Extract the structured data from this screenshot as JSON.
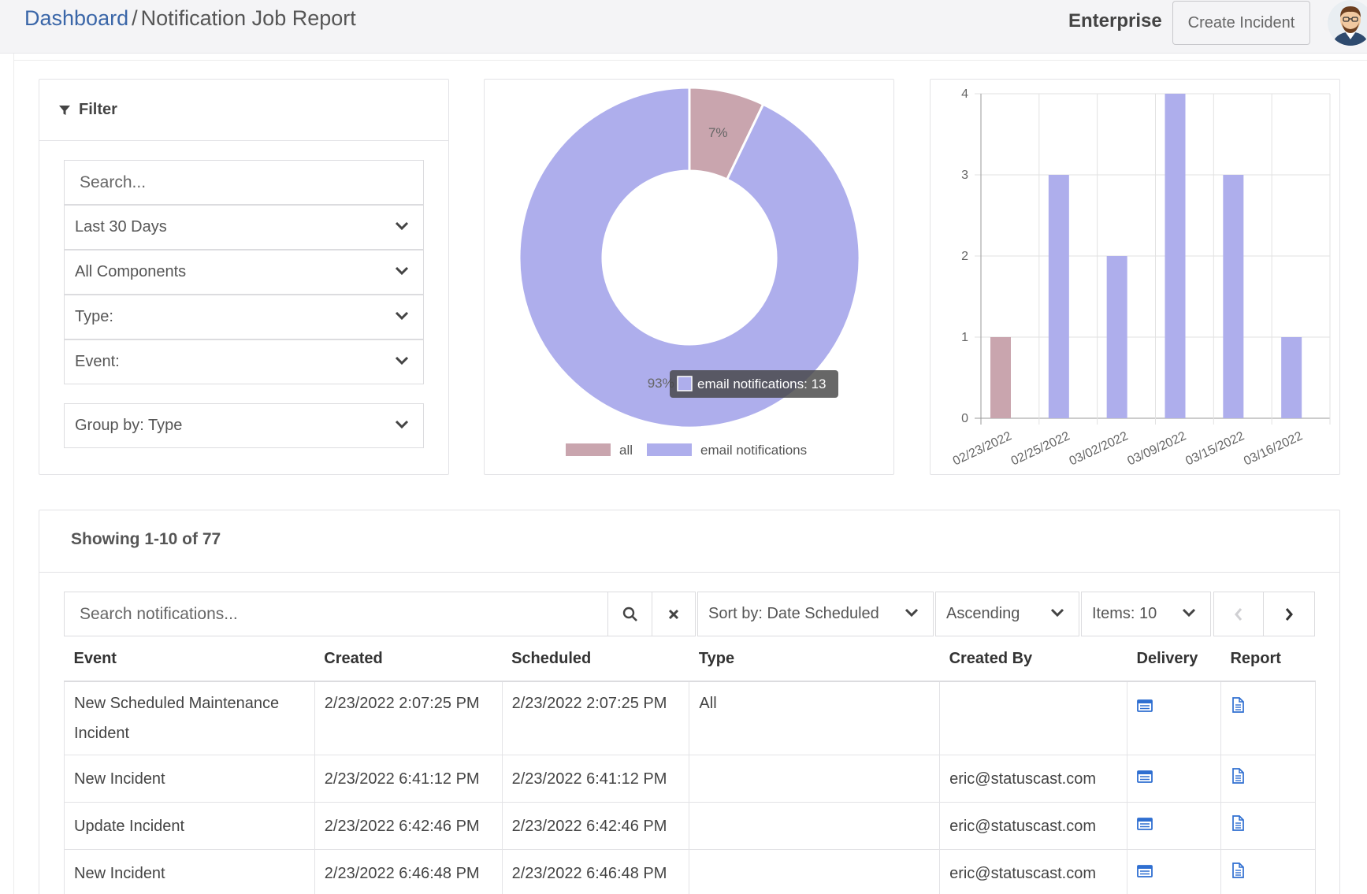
{
  "header": {
    "breadcrumb_link": "Dashboard",
    "breadcrumb_sep": "/",
    "page_title": "Notification Job Report",
    "plan_label": "Enterprise",
    "create_incident_label": "Create Incident"
  },
  "filter": {
    "title": "Filter",
    "search_placeholder": "Search...",
    "date_range": "Last 30 Days",
    "components": "All Components",
    "type": "Type:",
    "event": "Event:",
    "group_by": "Group by: Type"
  },
  "charts": {
    "donut": {
      "slices": [
        {
          "label": "all",
          "value": 1,
          "percent_label": "7%",
          "color": "#c9a5ae"
        },
        {
          "label": "email notifications",
          "value": 13,
          "percent_label": "93%",
          "color": "#aeaeec"
        }
      ],
      "tooltip": "email notifications: 13"
    },
    "bar": {
      "y_ticks": [
        "0",
        "1",
        "2",
        "3",
        "4"
      ],
      "x_labels": [
        "02/23/2022",
        "02/25/2022",
        "03/02/2022",
        "03/09/2022",
        "03/15/2022",
        "03/16/2022"
      ]
    }
  },
  "chart_data": [
    {
      "type": "pie",
      "labels": [
        "all",
        "email notifications"
      ],
      "values": [
        1,
        13
      ],
      "percent_labels": [
        "7%",
        "93%"
      ],
      "colors": [
        "#c9a5ae",
        "#aeaeec"
      ],
      "legend": "bottom",
      "tooltip": "email notifications: 13"
    },
    {
      "type": "bar",
      "categories": [
        "02/23/2022",
        "02/25/2022",
        "03/02/2022",
        "03/09/2022",
        "03/15/2022",
        "03/16/2022"
      ],
      "values": [
        1,
        3,
        2,
        4,
        3,
        1
      ],
      "colors": [
        "#c9a5ae",
        "#aeaeec",
        "#aeaeec",
        "#aeaeec",
        "#aeaeec",
        "#aeaeec"
      ],
      "ylim": [
        0,
        4
      ],
      "grid": true
    }
  ],
  "table_section": {
    "showing": "Showing 1-10 of 77",
    "search_placeholder": "Search notifications...",
    "sort_by": "Sort by: Date Scheduled",
    "order": "Ascending",
    "items": "Items: 10",
    "columns": [
      "Event",
      "Created",
      "Scheduled",
      "Type",
      "Created By",
      "Delivery",
      "Report"
    ],
    "rows": [
      {
        "event": "New Scheduled Maintenance Incident",
        "created": "2/23/2022 2:07:25 PM",
        "scheduled": "2/23/2022 2:07:25 PM",
        "type": "All",
        "created_by": ""
      },
      {
        "event": "New Incident",
        "created": "2/23/2022 6:41:12 PM",
        "scheduled": "2/23/2022 6:41:12 PM",
        "type": "",
        "created_by": "eric@statuscast.com"
      },
      {
        "event": "Update Incident",
        "created": "2/23/2022 6:42:46 PM",
        "scheduled": "2/23/2022 6:42:46 PM",
        "type": "",
        "created_by": "eric@statuscast.com"
      },
      {
        "event": "New Incident",
        "created": "2/23/2022 6:46:48 PM",
        "scheduled": "2/23/2022 6:46:48 PM",
        "type": "",
        "created_by": "eric@statuscast.com"
      }
    ]
  },
  "colors": {
    "link": "#3a66a8",
    "series_all": "#c9a5ae",
    "series_email": "#aeaeec",
    "icon_blue": "#2f6fd1"
  }
}
